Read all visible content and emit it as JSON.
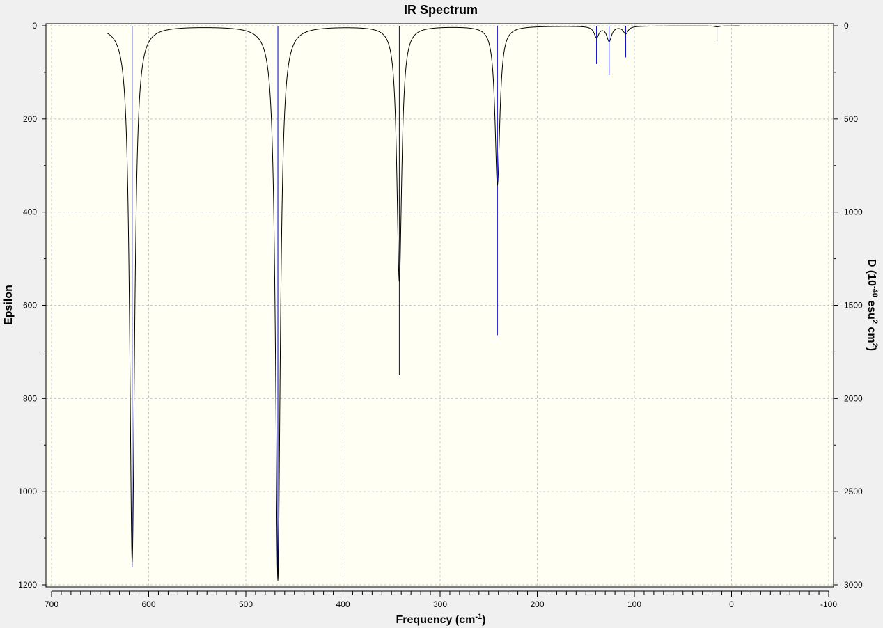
{
  "chart_data": {
    "type": "line",
    "title": "IR Spectrum",
    "xlabel": {
      "main": "Frequency (cm",
      "sup": "-1",
      "tail": ")"
    },
    "ylabel_left": "Epsilon",
    "ylabel_right": {
      "p1": "D (10",
      "sup1": "-40",
      "p2": " esu",
      "sup2": "2",
      "p3": " cm",
      "sup3": "2",
      "p4": ")"
    },
    "xlim": [
      700,
      -100
    ],
    "xticks": [
      700,
      600,
      500,
      400,
      300,
      200,
      100,
      0,
      -100
    ],
    "ylim_left": [
      0,
      1200
    ],
    "yticks_left": [
      0,
      200,
      400,
      600,
      800,
      1000,
      1200
    ],
    "ylim_right": [
      0,
      3000
    ],
    "yticks_right": [
      0,
      500,
      1000,
      1500,
      2000,
      2500,
      3000
    ],
    "grid": true,
    "spectrum_range": [
      643,
      -8
    ],
    "peak_width": 3,
    "bands": [
      {
        "freq": 617,
        "epsilon": 1150,
        "intensity": 2905
      },
      {
        "freq": 467,
        "epsilon": 1190,
        "intensity": 2960
      },
      {
        "freq": 342,
        "epsilon": 548,
        "intensity": 1875
      },
      {
        "freq": 241,
        "epsilon": 342,
        "intensity": 1660
      },
      {
        "freq": 139,
        "epsilon": 24,
        "intensity": 205
      },
      {
        "freq": 126,
        "epsilon": 32,
        "intensity": 265
      },
      {
        "freq": 109,
        "epsilon": 16,
        "intensity": 170
      },
      {
        "freq": 15,
        "epsilon": 2,
        "intensity": 90
      }
    ],
    "colors": {
      "background": "#f0f0f0",
      "plot_area": "#fffff4",
      "grid": "#c8c8c8",
      "curve": "#000000",
      "sticks": "#0000cc"
    }
  }
}
